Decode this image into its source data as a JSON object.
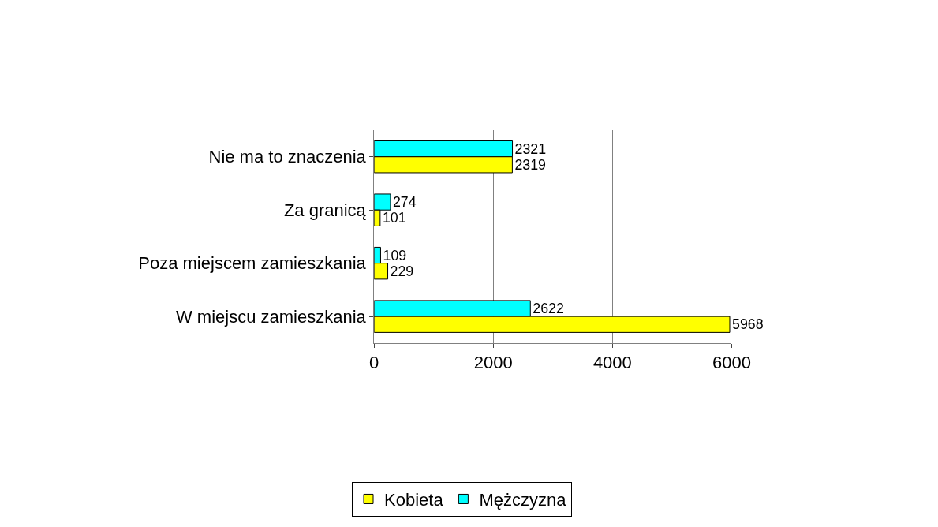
{
  "chart_data": {
    "type": "bar",
    "orientation": "horizontal",
    "categories": [
      "Nie ma to znaczenia",
      "Za granicą",
      "Poza miejscem zamieszkania",
      "W miejscu zamieszkania"
    ],
    "series": [
      {
        "name": "Kobieta",
        "color": "#ffff00",
        "values": [
          2319,
          101,
          229,
          5968
        ]
      },
      {
        "name": "Mężczyzna",
        "color": "#00ffff",
        "values": [
          2321,
          274,
          109,
          2622
        ]
      }
    ],
    "xlim": [
      0,
      6000
    ],
    "xticks": [
      0,
      2000,
      4000,
      6000
    ],
    "grid": "x",
    "legend": "bottom",
    "data_labels": true
  }
}
